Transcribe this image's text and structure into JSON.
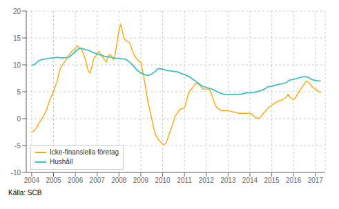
{
  "chart_data": {
    "type": "line",
    "annotation": "Källa: SCB",
    "xlim": [
      2003.75,
      2017.45
    ],
    "xticks": [
      2004,
      2005,
      2006,
      2007,
      2008,
      2009,
      2010,
      2011,
      2012,
      2013,
      2014,
      2015,
      2016,
      2017
    ],
    "ylim": [
      -10,
      20
    ],
    "yticks": [
      -10,
      -5,
      0,
      5,
      10,
      15,
      20
    ],
    "grid": true,
    "legend": "lower left",
    "series": [
      {
        "name": "Icke-finansiella företag",
        "color": "#FFA500",
        "x": [
          2004.0,
          2004.08,
          2004.17,
          2004.25,
          2004.33,
          2004.5,
          2004.67,
          2004.75,
          2004.83,
          2005.0,
          2005.08,
          2005.17,
          2005.25,
          2005.33,
          2005.5,
          2005.67,
          2005.75,
          2005.83,
          2006.0,
          2006.08,
          2006.17,
          2006.25,
          2006.33,
          2006.42,
          2006.5,
          2006.58,
          2006.67,
          2006.75,
          2006.83,
          2007.0,
          2007.08,
          2007.17,
          2007.25,
          2007.33,
          2007.42,
          2007.5,
          2007.58,
          2007.67,
          2007.75,
          2007.83,
          2008.0,
          2008.08,
          2008.17,
          2008.25,
          2008.33,
          2008.42,
          2008.5,
          2008.58,
          2008.67,
          2008.75,
          2008.83,
          2009.0,
          2009.08,
          2009.17,
          2009.25,
          2009.33,
          2009.42,
          2009.5,
          2009.58,
          2009.67,
          2009.75,
          2009.83,
          2010.0,
          2010.08,
          2010.17,
          2010.25,
          2010.33,
          2010.42,
          2010.5,
          2010.58,
          2010.67,
          2010.75,
          2010.83,
          2011.0,
          2011.08,
          2011.17,
          2011.25,
          2011.33,
          2011.42,
          2011.5,
          2011.58,
          2011.67,
          2011.75,
          2011.83,
          2012.0,
          2012.08,
          2012.17,
          2012.25,
          2012.33,
          2012.42,
          2012.5,
          2012.58,
          2012.67,
          2012.75,
          2012.83,
          2013.0,
          2013.17,
          2013.33,
          2013.5,
          2013.67,
          2013.75,
          2013.83,
          2014.0,
          2014.08,
          2014.17,
          2014.25,
          2014.33,
          2014.42,
          2014.5,
          2014.58,
          2014.67,
          2014.75,
          2014.83,
          2015.0,
          2015.17,
          2015.33,
          2015.5,
          2015.67,
          2015.75,
          2015.83,
          2016.0,
          2016.08,
          2016.17,
          2016.25,
          2016.33,
          2016.42,
          2016.5,
          2016.58,
          2016.67,
          2016.75,
          2016.83,
          2017.0,
          2017.08,
          2017.17,
          2017.25
        ],
        "values": [
          -2.5,
          -2.3,
          -2.0,
          -1.5,
          -0.8,
          0.2,
          1.5,
          2.5,
          3.5,
          5.0,
          6.0,
          7.0,
          8.5,
          9.5,
          10.5,
          11.5,
          12.0,
          12.5,
          13.0,
          13.5,
          13.3,
          13.0,
          12.5,
          11.5,
          10.5,
          9.0,
          8.5,
          9.5,
          11.0,
          12.0,
          12.5,
          12.0,
          11.5,
          11.0,
          10.5,
          11.5,
          12.0,
          11.5,
          11.0,
          12.0,
          16.5,
          17.5,
          16.0,
          14.8,
          14.5,
          14.3,
          14.0,
          13.0,
          12.0,
          11.5,
          11.0,
          10.5,
          9.0,
          7.0,
          5.0,
          3.0,
          1.5,
          0.0,
          -1.5,
          -3.0,
          -3.5,
          -4.0,
          -4.7,
          -4.8,
          -4.5,
          -3.5,
          -2.5,
          -1.5,
          -0.5,
          0.5,
          1.0,
          1.5,
          1.8,
          2.0,
          3.0,
          4.5,
          5.2,
          5.5,
          6.0,
          6.5,
          6.5,
          6.3,
          6.0,
          5.5,
          5.5,
          5.5,
          5.3,
          4.5,
          3.5,
          2.5,
          2.0,
          1.8,
          1.5,
          1.5,
          1.5,
          1.5,
          1.3,
          1.2,
          1.0,
          1.0,
          1.0,
          1.0,
          1.0,
          0.8,
          0.5,
          0.2,
          0.1,
          0.0,
          0.3,
          0.8,
          1.2,
          1.5,
          2.0,
          2.5,
          3.0,
          3.3,
          3.5,
          4.0,
          4.5,
          4.0,
          3.5,
          3.8,
          4.5,
          5.0,
          5.5,
          6.0,
          6.5,
          7.0,
          6.8,
          6.5,
          6.0,
          5.5,
          5.2,
          5.0,
          4.8
        ]
      },
      {
        "name": "Hushåll",
        "color": "#3BBFBF",
        "x": [
          2004.0,
          2004.08,
          2004.17,
          2004.25,
          2004.33,
          2004.5,
          2004.67,
          2004.75,
          2005.0,
          2005.17,
          2005.33,
          2005.5,
          2005.67,
          2005.75,
          2005.83,
          2006.0,
          2006.17,
          2006.25,
          2006.33,
          2006.5,
          2006.67,
          2006.75,
          2007.0,
          2007.17,
          2007.33,
          2007.5,
          2007.67,
          2007.75,
          2007.83,
          2008.0,
          2008.17,
          2008.33,
          2008.5,
          2008.67,
          2008.75,
          2008.83,
          2009.0,
          2009.17,
          2009.33,
          2009.5,
          2009.67,
          2009.75,
          2009.83,
          2010.0,
          2010.17,
          2010.33,
          2010.5,
          2010.67,
          2010.75,
          2010.83,
          2011.0,
          2011.17,
          2011.33,
          2011.5,
          2011.67,
          2011.75,
          2011.83,
          2012.0,
          2012.17,
          2012.33,
          2012.5,
          2012.67,
          2012.75,
          2012.83,
          2013.0,
          2013.17,
          2013.33,
          2013.5,
          2013.67,
          2013.75,
          2013.83,
          2014.0,
          2014.17,
          2014.33,
          2014.5,
          2014.67,
          2014.75,
          2014.83,
          2015.0,
          2015.17,
          2015.33,
          2015.5,
          2015.67,
          2015.75,
          2015.83,
          2016.0,
          2016.17,
          2016.33,
          2016.5,
          2016.67,
          2016.75,
          2016.83,
          2017.0,
          2017.17,
          2017.25
        ],
        "values": [
          9.9,
          10.0,
          10.2,
          10.5,
          10.8,
          11.0,
          11.1,
          11.2,
          11.3,
          11.4,
          11.3,
          11.3,
          11.4,
          11.5,
          11.8,
          12.5,
          13.0,
          13.1,
          13.0,
          12.8,
          12.6,
          12.4,
          12.0,
          11.8,
          11.6,
          11.5,
          11.4,
          11.3,
          11.2,
          11.2,
          11.1,
          11.0,
          10.5,
          9.8,
          9.4,
          9.0,
          8.5,
          8.2,
          8.0,
          8.3,
          8.8,
          9.2,
          9.3,
          9.2,
          9.0,
          8.9,
          8.8,
          8.7,
          8.6,
          8.4,
          8.2,
          7.9,
          7.5,
          7.0,
          6.5,
          6.2,
          6.0,
          5.8,
          5.6,
          5.4,
          5.0,
          4.7,
          4.6,
          4.5,
          4.5,
          4.5,
          4.5,
          4.5,
          4.6,
          4.7,
          4.8,
          4.8,
          4.9,
          5.0,
          5.2,
          5.5,
          5.7,
          5.9,
          6.0,
          6.2,
          6.4,
          6.5,
          6.7,
          7.0,
          7.2,
          7.3,
          7.5,
          7.7,
          7.8,
          7.7,
          7.5,
          7.3,
          7.1,
          7.0,
          7.0
        ]
      }
    ]
  }
}
